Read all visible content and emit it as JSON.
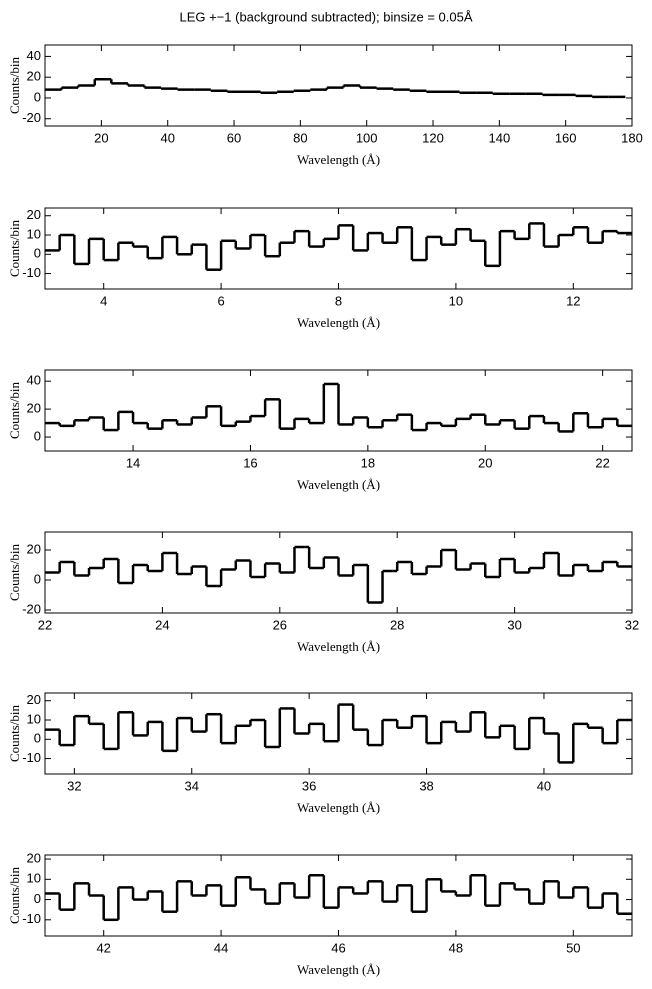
{
  "chart_data": [
    {
      "type": "histogram",
      "title": "LEG +−1 (background subtracted); binsize = 0.05Å",
      "x_label": "Wavelength (Å)",
      "y_label": "Counts/bin",
      "color": "#000000",
      "xlim": [
        3,
        180
      ],
      "xticks": [
        20,
        40,
        60,
        80,
        100,
        120,
        140,
        160,
        180
      ],
      "ylim": [
        -27,
        51
      ],
      "yticks": [
        -20,
        0,
        20,
        40
      ],
      "bins": [
        3,
        8,
        13,
        18,
        23,
        28,
        33,
        38,
        43,
        48,
        53,
        58,
        63,
        68,
        73,
        78,
        83,
        88,
        93,
        98,
        103,
        108,
        113,
        118,
        123,
        128,
        133,
        138,
        143,
        148,
        153,
        158,
        163,
        168,
        173,
        178
      ],
      "values": [
        8,
        10,
        12,
        18,
        14,
        12,
        10,
        9,
        8,
        8,
        7,
        6,
        6,
        5,
        6,
        7,
        8,
        10,
        12,
        10,
        9,
        8,
        7,
        6,
        6,
        5,
        5,
        4,
        4,
        4,
        3,
        3,
        2,
        1,
        1
      ]
    },
    {
      "type": "histogram",
      "x_label": "Wavelength (Å)",
      "y_label": "Counts/bin",
      "color": "#000000",
      "xlim": [
        3,
        13
      ],
      "xticks": [
        4,
        6,
        8,
        10,
        12
      ],
      "ylim": [
        -18,
        24
      ],
      "yticks": [
        -10,
        0,
        10,
        20
      ],
      "bins": [
        3,
        3.25,
        3.5,
        3.75,
        4,
        4.25,
        4.5,
        4.75,
        5,
        5.25,
        5.5,
        5.75,
        6,
        6.25,
        6.5,
        6.75,
        7,
        7.25,
        7.5,
        7.75,
        8,
        8.25,
        8.5,
        8.75,
        9,
        9.25,
        9.5,
        9.75,
        10,
        10.25,
        10.5,
        10.75,
        11,
        11.25,
        11.5,
        11.75,
        12,
        12.25,
        12.5,
        12.75,
        13
      ],
      "values": [
        2,
        10,
        -5,
        8,
        -3,
        6,
        4,
        -2,
        9,
        0,
        5,
        -8,
        7,
        3,
        10,
        -1,
        6,
        12,
        4,
        8,
        15,
        2,
        11,
        6,
        14,
        -3,
        9,
        5,
        13,
        7,
        -6,
        12,
        8,
        16,
        4,
        10,
        14,
        6,
        12,
        11
      ]
    },
    {
      "type": "histogram",
      "x_label": "Wavelength (Å)",
      "y_label": "Counts/bin",
      "color": "#000000",
      "xlim": [
        12.5,
        22.5
      ],
      "xticks": [
        14,
        16,
        18,
        20,
        22
      ],
      "ylim": [
        -10,
        48
      ],
      "yticks": [
        0,
        20,
        40
      ],
      "bins": [
        12.5,
        12.75,
        13,
        13.25,
        13.5,
        13.75,
        14,
        14.25,
        14.5,
        14.75,
        15,
        15.25,
        15.5,
        15.75,
        16,
        16.25,
        16.5,
        16.75,
        17,
        17.25,
        17.5,
        17.75,
        18,
        18.25,
        18.5,
        18.75,
        19,
        19.25,
        19.5,
        19.75,
        20,
        20.25,
        20.5,
        20.75,
        21,
        21.25,
        21.5,
        21.75,
        22,
        22.25,
        22.5
      ],
      "values": [
        10,
        8,
        12,
        14,
        5,
        18,
        10,
        6,
        12,
        9,
        14,
        22,
        8,
        11,
        15,
        27,
        6,
        13,
        10,
        38,
        9,
        14,
        7,
        12,
        16,
        5,
        10,
        8,
        13,
        16,
        9,
        12,
        6,
        15,
        10,
        4,
        17,
        7,
        13,
        8
      ]
    },
    {
      "type": "histogram",
      "x_label": "Wavelength (Å)",
      "y_label": "Counts/bin",
      "color": "#000000",
      "xlim": [
        22,
        32
      ],
      "xticks": [
        22,
        24,
        26,
        28,
        30,
        32
      ],
      "ylim": [
        -22,
        32
      ],
      "yticks": [
        -20,
        0,
        20
      ],
      "bins": [
        22,
        22.25,
        22.5,
        22.75,
        23,
        23.25,
        23.5,
        23.75,
        24,
        24.25,
        24.5,
        24.75,
        25,
        25.25,
        25.5,
        25.75,
        26,
        26.25,
        26.5,
        26.75,
        27,
        27.25,
        27.5,
        27.75,
        28,
        28.25,
        28.5,
        28.75,
        29,
        29.25,
        29.5,
        29.75,
        30,
        30.25,
        30.5,
        30.75,
        31,
        31.25,
        31.5,
        31.75,
        32
      ],
      "values": [
        5,
        12,
        3,
        8,
        14,
        -2,
        10,
        6,
        18,
        4,
        9,
        -4,
        7,
        13,
        2,
        11,
        5,
        22,
        8,
        15,
        3,
        10,
        -15,
        6,
        12,
        4,
        9,
        20,
        7,
        11,
        2,
        14,
        5,
        8,
        18,
        3,
        10,
        6,
        12,
        9
      ]
    },
    {
      "type": "histogram",
      "x_label": "Wavelength (Å)",
      "y_label": "Counts/bin",
      "color": "#000000",
      "xlim": [
        31.5,
        41.5
      ],
      "xticks": [
        32,
        34,
        36,
        38,
        40
      ],
      "ylim": [
        -18,
        24
      ],
      "yticks": [
        -10,
        0,
        10,
        20
      ],
      "bins": [
        31.5,
        31.75,
        32,
        32.25,
        32.5,
        32.75,
        33,
        33.25,
        33.5,
        33.75,
        34,
        34.25,
        34.5,
        34.75,
        35,
        35.25,
        35.5,
        35.75,
        36,
        36.25,
        36.5,
        36.75,
        37,
        37.25,
        37.5,
        37.75,
        38,
        38.25,
        38.5,
        38.75,
        39,
        39.25,
        39.5,
        39.75,
        40,
        40.25,
        40.5,
        40.75,
        41,
        41.25,
        41.5
      ],
      "values": [
        5,
        -3,
        12,
        8,
        -5,
        14,
        2,
        9,
        -6,
        11,
        4,
        13,
        -2,
        7,
        10,
        -4,
        16,
        3,
        8,
        -1,
        18,
        5,
        -3,
        10,
        6,
        12,
        -2,
        9,
        4,
        14,
        1,
        7,
        -5,
        11,
        3,
        -12,
        8,
        6,
        -2,
        10
      ]
    },
    {
      "type": "histogram",
      "x_label": "Wavelength (Å)",
      "y_label": "Counts/bin",
      "color": "#000000",
      "xlim": [
        41,
        51
      ],
      "xticks": [
        42,
        44,
        46,
        48,
        50
      ],
      "ylim": [
        -18,
        22
      ],
      "yticks": [
        -10,
        0,
        10,
        20
      ],
      "bins": [
        41,
        41.25,
        41.5,
        41.75,
        42,
        42.25,
        42.5,
        42.75,
        43,
        43.25,
        43.5,
        43.75,
        44,
        44.25,
        44.5,
        44.75,
        45,
        45.25,
        45.5,
        45.75,
        46,
        46.25,
        46.5,
        46.75,
        47,
        47.25,
        47.5,
        47.75,
        48,
        48.25,
        48.5,
        48.75,
        49,
        49.25,
        49.5,
        49.75,
        50,
        50.25,
        50.5,
        50.75,
        51
      ],
      "values": [
        3,
        -5,
        8,
        2,
        -10,
        6,
        0,
        4,
        -6,
        9,
        2,
        7,
        -3,
        11,
        5,
        -2,
        8,
        1,
        12,
        -4,
        6,
        3,
        9,
        -1,
        7,
        -6,
        10,
        4,
        2,
        12,
        -3,
        8,
        5,
        -2,
        9,
        1,
        6,
        -4,
        3,
        -7
      ]
    }
  ]
}
